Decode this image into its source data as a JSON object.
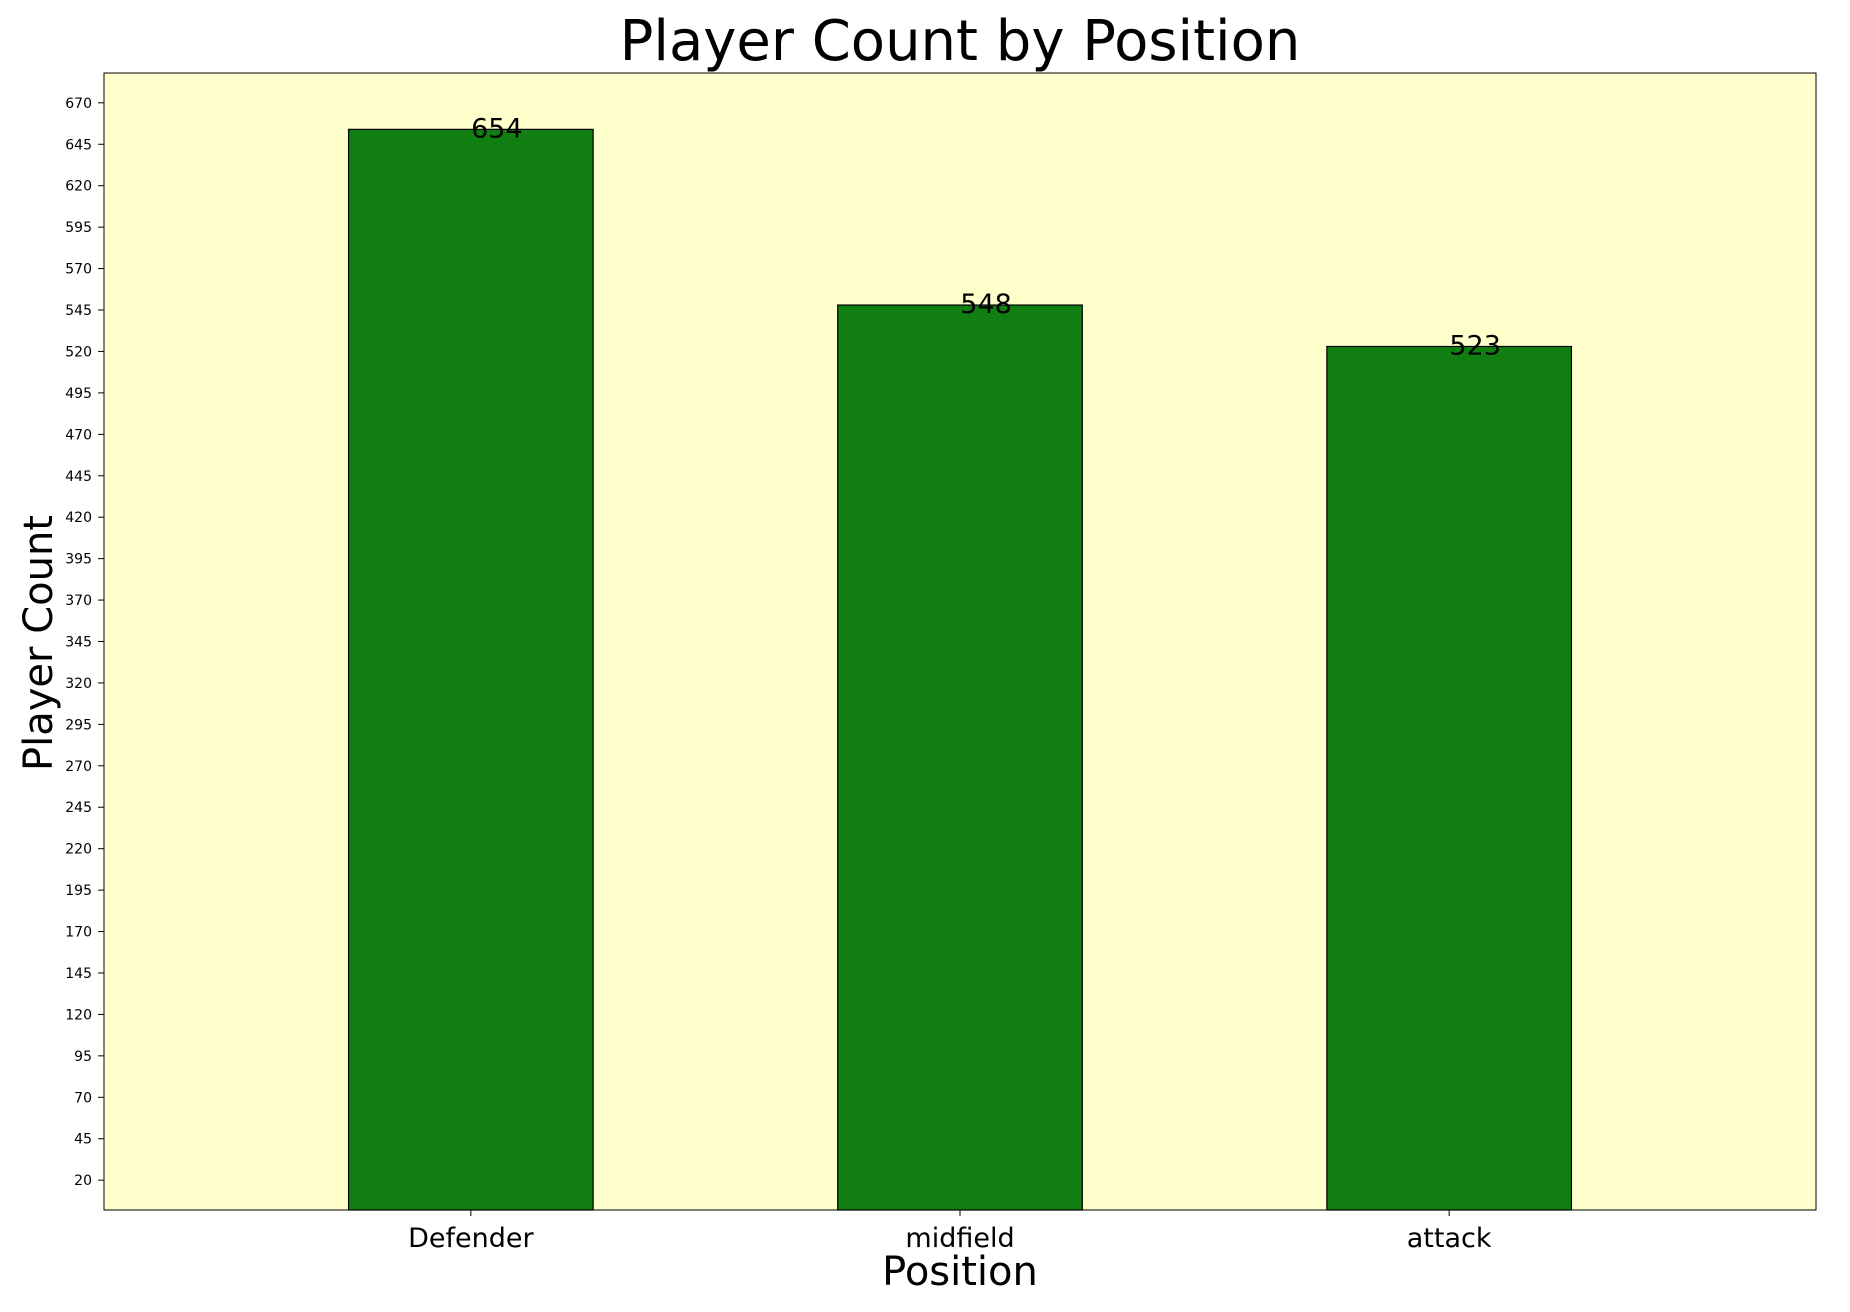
{
  "chart_data": {
    "type": "bar",
    "title": "Player Count by Position",
    "xlabel": "Position",
    "ylabel": "Player Count",
    "categories": [
      "Defender",
      "midfield",
      "attack"
    ],
    "values": [
      654,
      548,
      523
    ],
    "data_labels": [
      "654",
      "548",
      "523"
    ],
    "ylim": [
      2,
      688
    ],
    "yticks": [
      20,
      45,
      70,
      95,
      120,
      145,
      170,
      195,
      220,
      245,
      270,
      295,
      320,
      345,
      370,
      395,
      420,
      445,
      470,
      495,
      520,
      545,
      570,
      595,
      620,
      645,
      670
    ],
    "grid": false,
    "legend": "none",
    "colors": {
      "bar_fill": "#117e11",
      "bar_edge": "#000000",
      "plot_background": "#ffffcc",
      "page_background": "#ffffff"
    }
  }
}
